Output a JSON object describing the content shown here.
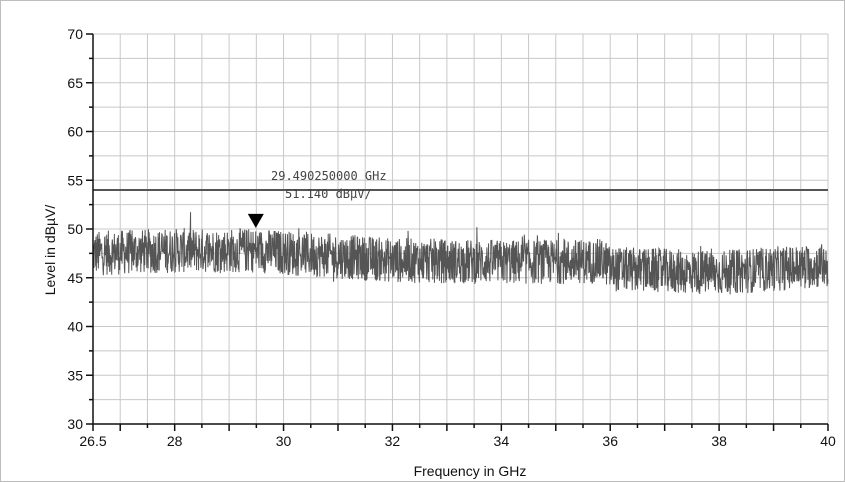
{
  "chart_data": {
    "type": "line",
    "title": "",
    "xlabel": "Frequency in GHz",
    "ylabel": "Level in dBµV/",
    "xlim": [
      26.5,
      40
    ],
    "ylim": [
      30,
      70
    ],
    "x_ticks": [
      26.5,
      28,
      30,
      32,
      34,
      36,
      38,
      40
    ],
    "x_tick_labels": [
      "26.5",
      "28",
      "30",
      "32",
      "34",
      "36",
      "38",
      "40"
    ],
    "y_ticks": [
      30,
      35,
      40,
      45,
      50,
      55,
      60,
      65,
      70
    ],
    "y_tick_labels": [
      "30",
      "35",
      "40",
      "45",
      "50",
      "55",
      "60",
      "65",
      "70"
    ],
    "grid": true,
    "limit_line": {
      "y": 54,
      "color": "#555555"
    },
    "marker": {
      "x": 29.49025,
      "y": 51.14,
      "frequency_label": "29.490250000 GHz",
      "level_label": "51.140 dBμV/"
    },
    "series": [
      {
        "color": "#555555",
        "noise_amplitude": 2.3,
        "baseline": [
          {
            "x": 26.5,
            "y": 47.5
          },
          {
            "x": 28,
            "y": 47.8
          },
          {
            "x": 29.5,
            "y": 47.8
          },
          {
            "x": 31,
            "y": 47.2
          },
          {
            "x": 32,
            "y": 46.8
          },
          {
            "x": 34,
            "y": 46.6
          },
          {
            "x": 35.9,
            "y": 46.7
          },
          {
            "x": 36.0,
            "y": 45.9
          },
          {
            "x": 38,
            "y": 45.5
          },
          {
            "x": 40,
            "y": 46.3
          }
        ]
      }
    ]
  }
}
